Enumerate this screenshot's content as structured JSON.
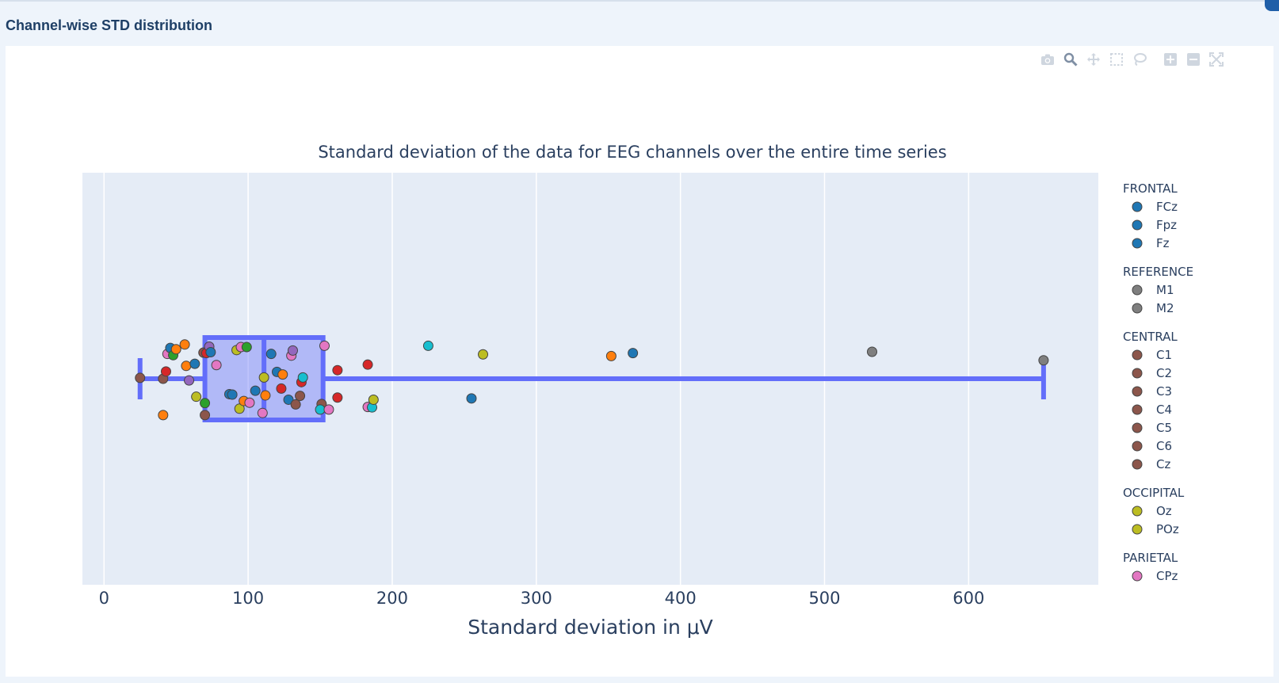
{
  "section": {
    "title": "Channel-wise STD distribution"
  },
  "modebar": [
    "camera-icon",
    "zoom-icon",
    "pan-icon",
    "box-select-icon",
    "lasso-icon",
    "zoom-in-icon",
    "zoom-out-icon",
    "autoscale-icon"
  ],
  "colors": {
    "plot_bg": "#e5ecf6",
    "box": "#636efa",
    "box_fill": "rgba(99,110,250,0.4)",
    "grid": "#ffffff",
    "text": "#2a3f5f"
  },
  "chart_data": {
    "type": "box",
    "title": "Standard deviation of the data for EEG channels over the entire time series",
    "xlabel": "Standard deviation in μV",
    "xlim": [
      -15,
      690
    ],
    "xticks": [
      0,
      100,
      200,
      300,
      400,
      500,
      600
    ],
    "box": {
      "min": 25,
      "q1": 70,
      "median": 111,
      "q3": 152,
      "max": 652
    },
    "legend": {
      "placement": "right",
      "groups": [
        {
          "title": "FRONTAL",
          "color": "#1f77b4",
          "entries": [
            "FCz",
            "Fpz",
            "Fz"
          ]
        },
        {
          "title": "REFERENCE",
          "color": "#7f7f7f",
          "entries": [
            "M1",
            "M2"
          ]
        },
        {
          "title": "CENTRAL",
          "color": "#8c564b",
          "entries": [
            "C1",
            "C2",
            "C3",
            "C4",
            "C5",
            "C6",
            "Cz"
          ]
        },
        {
          "title": "OCCIPITAL",
          "color": "#bcbd22",
          "entries": [
            "Oz",
            "POz"
          ]
        },
        {
          "title": "PARIETAL",
          "color": "#e377c2",
          "entries": [
            "CPz"
          ]
        }
      ]
    },
    "points": [
      {
        "x": 25,
        "j": 0.02,
        "c": "#8c564b"
      },
      {
        "x": 41,
        "j": -0.85,
        "c": "#ff7f0e"
      },
      {
        "x": 41,
        "j": 0.0,
        "c": "#8c564b"
      },
      {
        "x": 43,
        "j": 0.17,
        "c": "#d62728"
      },
      {
        "x": 44,
        "j": 0.58,
        "c": "#e377c2"
      },
      {
        "x": 46,
        "j": 0.72,
        "c": "#1f77b4"
      },
      {
        "x": 48,
        "j": 0.55,
        "c": "#2ca02c"
      },
      {
        "x": 50,
        "j": 0.69,
        "c": "#ff7f0e"
      },
      {
        "x": 56,
        "j": 0.8,
        "c": "#ff7f0e"
      },
      {
        "x": 57,
        "j": 0.3,
        "c": "#ff7f0e"
      },
      {
        "x": 59,
        "j": -0.04,
        "c": "#9467bd"
      },
      {
        "x": 63,
        "j": 0.35,
        "c": "#1f77b4"
      },
      {
        "x": 64,
        "j": -0.42,
        "c": "#bcbd22"
      },
      {
        "x": 69,
        "j": 0.61,
        "c": "#8c564b"
      },
      {
        "x": 70,
        "j": -0.57,
        "c": "#2ca02c"
      },
      {
        "x": 70,
        "j": -0.85,
        "c": "#8c564b"
      },
      {
        "x": 71,
        "j": 0.6,
        "c": "#d62728"
      },
      {
        "x": 73,
        "j": 0.75,
        "c": "#9467bd"
      },
      {
        "x": 74,
        "j": 0.62,
        "c": "#1f77b4"
      },
      {
        "x": 78,
        "j": 0.32,
        "c": "#e377c2"
      },
      {
        "x": 87,
        "j": -0.36,
        "c": "#1f77b4"
      },
      {
        "x": 89,
        "j": -0.37,
        "c": "#1f77b4"
      },
      {
        "x": 92,
        "j": 0.67,
        "c": "#bcbd22"
      },
      {
        "x": 94,
        "j": -0.7,
        "c": "#bcbd22"
      },
      {
        "x": 95,
        "j": 0.74,
        "c": "#e377c2"
      },
      {
        "x": 97,
        "j": -0.52,
        "c": "#ff7f0e"
      },
      {
        "x": 99,
        "j": 0.74,
        "c": "#2ca02c"
      },
      {
        "x": 101,
        "j": -0.56,
        "c": "#e377c2"
      },
      {
        "x": 105,
        "j": -0.28,
        "c": "#1f77b4"
      },
      {
        "x": 110,
        "j": -0.8,
        "c": "#e377c2"
      },
      {
        "x": 111,
        "j": 0.03,
        "c": "#bcbd22"
      },
      {
        "x": 112,
        "j": -0.39,
        "c": "#ff7f0e"
      },
      {
        "x": 116,
        "j": 0.58,
        "c": "#1f77b4"
      },
      {
        "x": 120,
        "j": 0.16,
        "c": "#1f77b4"
      },
      {
        "x": 123,
        "j": -0.23,
        "c": "#d62728"
      },
      {
        "x": 124,
        "j": 0.1,
        "c": "#ff7f0e"
      },
      {
        "x": 128,
        "j": -0.49,
        "c": "#1f77b4"
      },
      {
        "x": 130,
        "j": 0.54,
        "c": "#e377c2"
      },
      {
        "x": 131,
        "j": 0.66,
        "c": "#9467bd"
      },
      {
        "x": 133,
        "j": -0.6,
        "c": "#8c564b"
      },
      {
        "x": 136,
        "j": -0.4,
        "c": "#8c564b"
      },
      {
        "x": 137,
        "j": -0.08,
        "c": "#d62728"
      },
      {
        "x": 138,
        "j": 0.03,
        "c": "#17becf"
      },
      {
        "x": 151,
        "j": -0.59,
        "c": "#8c564b"
      },
      {
        "x": 150,
        "j": -0.72,
        "c": "#17becf"
      },
      {
        "x": 153,
        "j": 0.77,
        "c": "#e377c2"
      },
      {
        "x": 156,
        "j": -0.72,
        "c": "#e377c2"
      },
      {
        "x": 162,
        "j": 0.2,
        "c": "#d62728"
      },
      {
        "x": 162,
        "j": -0.44,
        "c": "#d62728"
      },
      {
        "x": 183,
        "j": 0.33,
        "c": "#d62728"
      },
      {
        "x": 183,
        "j": -0.66,
        "c": "#e377c2"
      },
      {
        "x": 186,
        "j": -0.67,
        "c": "#17becf"
      },
      {
        "x": 187,
        "j": -0.49,
        "c": "#bcbd22"
      },
      {
        "x": 225,
        "j": 0.77,
        "c": "#17becf"
      },
      {
        "x": 255,
        "j": -0.46,
        "c": "#1f77b4"
      },
      {
        "x": 263,
        "j": 0.57,
        "c": "#bcbd22"
      },
      {
        "x": 352,
        "j": 0.53,
        "c": "#ff7f0e"
      },
      {
        "x": 367,
        "j": 0.6,
        "c": "#1f77b4"
      },
      {
        "x": 533,
        "j": 0.63,
        "c": "#7f7f7f"
      },
      {
        "x": 652,
        "j": 0.43,
        "c": "#7f7f7f"
      }
    ]
  }
}
